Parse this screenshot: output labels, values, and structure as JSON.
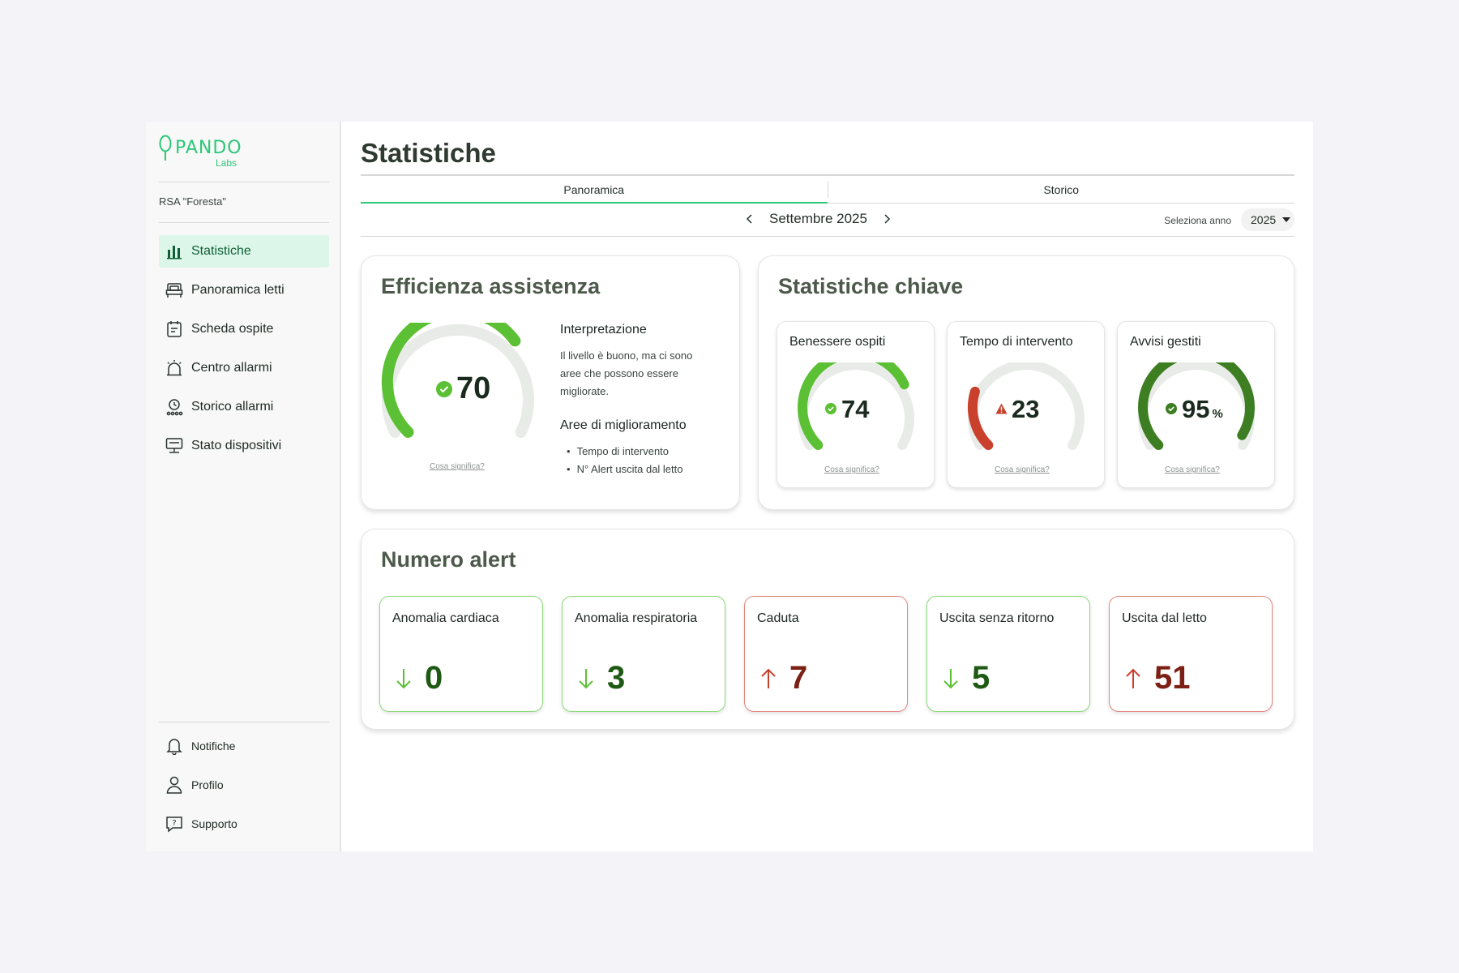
{
  "brand": {
    "name": "PANDO",
    "sub": "Labs"
  },
  "org": "RSA \"Foresta\"",
  "sidebar": {
    "items": [
      {
        "label": "Statistiche",
        "icon": "bar-chart-icon",
        "active": true
      },
      {
        "label": "Panoramica letti",
        "icon": "bed-icon"
      },
      {
        "label": "Scheda ospite",
        "icon": "clipboard-icon"
      },
      {
        "label": "Centro allarmi",
        "icon": "siren-icon"
      },
      {
        "label": "Storico allarmi",
        "icon": "alarm-history-icon"
      },
      {
        "label": "Stato dispositivi",
        "icon": "devices-icon"
      }
    ],
    "bottom": [
      {
        "label": "Notifiche",
        "icon": "bell-icon"
      },
      {
        "label": "Profilo",
        "icon": "user-icon"
      },
      {
        "label": "Supporto",
        "icon": "help-chat-icon"
      }
    ]
  },
  "page": {
    "title": "Statistiche"
  },
  "tabs": [
    {
      "label": "Panoramica",
      "active": true
    },
    {
      "label": "Storico"
    }
  ],
  "period": {
    "label": "Settembre 2025",
    "year_label": "Seleziona anno",
    "year": "2025"
  },
  "efficiency": {
    "title": "Efficienza assistenza",
    "value": 70,
    "status": "ok",
    "link": "Cosa significa?",
    "interpretation_title": "Interpretazione",
    "interpretation_text": "Il livello è buono, ma ci sono aree che possono essere migliorate.",
    "areas_title": "Aree di miglioramento",
    "areas": [
      "Tempo di intervento",
      "N° Alert uscita dal letto"
    ]
  },
  "key_stats": {
    "title": "Statistiche chiave",
    "items": [
      {
        "title": "Benessere ospiti",
        "value": "74",
        "unit": "",
        "status": "ok",
        "color": "#5cc034",
        "fraction": 0.74,
        "link": "Cosa significa?"
      },
      {
        "title": "Tempo di intervento",
        "value": "23",
        "unit": "",
        "status": "warning",
        "color": "#c9402c",
        "fraction": 0.23,
        "link": "Cosa significa?"
      },
      {
        "title": "Avvisi gestiti",
        "value": "95",
        "unit": "%",
        "status": "ok-dark",
        "color": "#3d7e22",
        "fraction": 0.95,
        "link": "Cosa significa?"
      }
    ]
  },
  "alerts": {
    "title": "Numero alert",
    "items": [
      {
        "title": "Anomalia cardiaca",
        "value": "0",
        "trend": "down"
      },
      {
        "title": "Anomalia respiratoria",
        "value": "3",
        "trend": "down"
      },
      {
        "title": "Caduta",
        "value": "7",
        "trend": "up"
      },
      {
        "title": "Uscita senza ritorno",
        "value": "5",
        "trend": "down"
      },
      {
        "title": "Uscita dal letto",
        "value": "51",
        "trend": "up"
      }
    ]
  },
  "colors": {
    "accent": "#2dc77a",
    "good": "#5cc034",
    "bad": "#c9402c",
    "good_text": "#1e5a14",
    "bad_text": "#7c1f14"
  }
}
